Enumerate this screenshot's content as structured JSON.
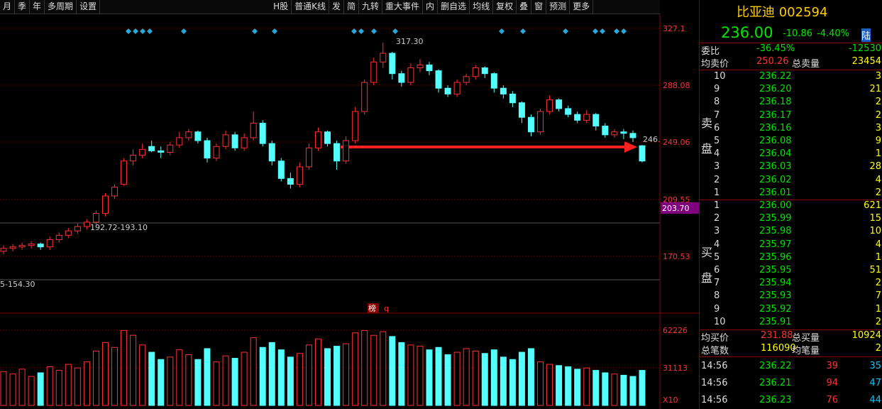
{
  "toolbar": [
    "月",
    "季",
    "年",
    "多周期",
    "设置",
    "H股",
    "普通K线",
    "发",
    "简",
    "九转",
    "重大事件",
    "内",
    "删自选",
    "均线",
    "复权",
    "叠",
    "窗",
    "预测",
    "更多"
  ],
  "chart_data": {
    "type": "candlestick",
    "up_color": "#ff3232",
    "down_color": "#54ffff",
    "ylim": [
      132,
      337.8
    ],
    "yticks": [
      170.53,
      209.55,
      249.06,
      288.08,
      327.1
    ],
    "candles": [
      [
        174,
        178,
        172,
        176
      ],
      [
        176,
        179,
        174,
        177
      ],
      [
        177,
        180,
        175,
        178
      ],
      [
        178,
        181,
        176,
        179
      ],
      [
        179,
        180,
        175,
        177
      ],
      [
        177,
        184,
        175,
        182
      ],
      [
        182,
        187,
        180,
        185
      ],
      [
        185,
        190,
        183,
        188
      ],
      [
        188,
        193,
        186,
        191
      ],
      [
        191,
        196,
        189,
        194
      ],
      [
        194,
        202,
        192,
        200
      ],
      [
        200,
        214,
        198,
        212
      ],
      [
        212,
        220,
        210,
        218
      ],
      [
        220,
        238,
        219,
        236
      ],
      [
        236,
        244,
        233,
        240
      ],
      [
        240,
        248,
        238,
        244
      ],
      [
        246,
        250,
        242,
        243
      ],
      [
        243,
        246,
        238,
        242
      ],
      [
        242,
        249,
        240,
        247
      ],
      [
        247,
        256,
        245,
        252
      ],
      [
        252,
        258,
        250,
        256
      ],
      [
        256,
        257,
        248,
        250
      ],
      [
        250,
        252,
        235,
        238
      ],
      [
        238,
        248,
        236,
        246
      ],
      [
        246,
        257,
        244,
        254
      ],
      [
        254,
        256,
        243,
        245
      ],
      [
        245,
        255,
        243,
        252
      ],
      [
        252,
        270,
        250,
        262
      ],
      [
        262,
        264,
        246,
        248
      ],
      [
        248,
        250,
        233,
        236
      ],
      [
        236,
        238,
        222,
        224
      ],
      [
        224,
        228,
        217,
        220
      ],
      [
        220,
        235,
        218,
        232
      ],
      [
        232,
        248,
        230,
        245
      ],
      [
        245,
        259,
        243,
        256
      ],
      [
        256,
        257,
        246,
        248
      ],
      [
        248,
        250,
        230,
        236
      ],
      [
        236,
        253,
        234,
        250
      ],
      [
        250,
        273,
        248,
        270
      ],
      [
        270,
        292,
        268,
        290
      ],
      [
        290,
        307,
        288,
        304
      ],
      [
        304,
        317.3,
        300,
        310
      ],
      [
        310,
        311,
        292,
        296
      ],
      [
        296,
        298,
        287,
        290
      ],
      [
        290,
        303,
        288,
        300
      ],
      [
        300,
        306,
        297,
        302
      ],
      [
        302,
        304,
        295,
        298
      ],
      [
        298,
        299,
        283,
        286
      ],
      [
        286,
        288,
        280,
        282
      ],
      [
        282,
        292,
        280,
        290
      ],
      [
        290,
        296,
        288,
        294
      ],
      [
        294,
        302,
        292,
        300
      ],
      [
        300,
        301,
        293,
        296
      ],
      [
        296,
        297,
        283,
        286
      ],
      [
        286,
        288,
        279,
        282
      ],
      [
        282,
        284,
        273,
        276
      ],
      [
        276,
        277,
        262,
        266
      ],
      [
        266,
        268,
        253,
        256
      ],
      [
        256,
        272,
        254,
        270
      ],
      [
        270,
        281,
        268,
        278
      ],
      [
        278,
        279,
        270,
        272
      ],
      [
        272,
        274,
        266,
        268
      ],
      [
        268,
        270,
        262,
        264
      ],
      [
        264,
        271,
        262,
        268
      ],
      [
        268,
        269,
        257,
        260
      ],
      [
        260,
        262,
        252,
        254
      ],
      [
        254,
        258,
        252,
        256
      ],
      [
        256,
        258,
        251,
        255
      ],
      [
        255,
        257,
        249,
        252
      ],
      [
        246.5,
        247,
        235,
        236
      ]
    ],
    "volume_ylim": [
      0,
      75727
    ],
    "volume_yticks": [
      31113,
      62226
    ],
    "volumes": [
      28000,
      26000,
      30000,
      24000,
      27000,
      32000,
      29000,
      34000,
      31000,
      36000,
      45000,
      52000,
      48000,
      62000,
      58000,
      50000,
      44000,
      38000,
      40000,
      46000,
      42000,
      38000,
      47000,
      36000,
      41000,
      39000,
      44000,
      56000,
      48000,
      52000,
      46000,
      40000,
      43000,
      50000,
      55000,
      47000,
      49000,
      51000,
      60000,
      62000,
      58000,
      61000,
      57000,
      52000,
      50000,
      49000,
      46000,
      48000,
      42000,
      44000,
      47000,
      45000,
      43000,
      46000,
      40000,
      38000,
      44000,
      47000,
      36000,
      34000,
      33000,
      32000,
      30000,
      31000,
      29000,
      27000,
      26000,
      25000,
      24000,
      29000
    ],
    "annotations": [
      "317.30",
      "192.72-193.10",
      "246.",
      "5-154.30",
      "203.70",
      "榜",
      "q",
      "X10"
    ]
  },
  "quote": {
    "name": "比亚迪 002594",
    "price": "236.00",
    "change": "-10.86",
    "pct": "-4.40%",
    "tag": "陆",
    "ratio_label": "委比",
    "ratio": "-36.45%",
    "ratio_diff": "-12530",
    "avg_sell_label": "均卖价",
    "avg_sell": "250.26",
    "total_sell_label": "总卖量",
    "total_sell": "23454",
    "sell_label": [
      "卖",
      "盘"
    ],
    "buy_label": [
      "买",
      "盘"
    ],
    "sell": [
      [
        "10",
        "236.22",
        "3"
      ],
      [
        "9",
        "236.20",
        "21"
      ],
      [
        "8",
        "236.18",
        "2"
      ],
      [
        "7",
        "236.17",
        "2"
      ],
      [
        "6",
        "236.16",
        "3"
      ],
      [
        "5",
        "236.08",
        "9"
      ],
      [
        "4",
        "236.04",
        "1"
      ],
      [
        "3",
        "236.03",
        "28"
      ],
      [
        "2",
        "236.02",
        "4"
      ],
      [
        "1",
        "236.01",
        "2"
      ]
    ],
    "buy": [
      [
        "1",
        "236.00",
        "621"
      ],
      [
        "2",
        "235.99",
        "15"
      ],
      [
        "3",
        "235.98",
        "10"
      ],
      [
        "4",
        "235.97",
        "4"
      ],
      [
        "5",
        "235.96",
        "1"
      ],
      [
        "6",
        "235.95",
        "51"
      ],
      [
        "7",
        "235.94",
        "2"
      ],
      [
        "8",
        "235.93",
        "7"
      ],
      [
        "9",
        "235.92",
        "1"
      ],
      [
        "10",
        "235.91",
        "2"
      ]
    ],
    "avg_buy_label": "均买价",
    "avg_buy": "231.88",
    "total_buy_label": "总买量",
    "total_buy": "10924",
    "count_label": "总笔数",
    "count": "116090",
    "avg_vol_label": "均笔量",
    "avg_vol": "2",
    "trades": [
      [
        "14:56",
        "236.22",
        "39",
        "35"
      ],
      [
        "14:56",
        "236.21",
        "94",
        "47"
      ],
      [
        "14:56",
        "236.23",
        "76",
        "44"
      ]
    ]
  }
}
